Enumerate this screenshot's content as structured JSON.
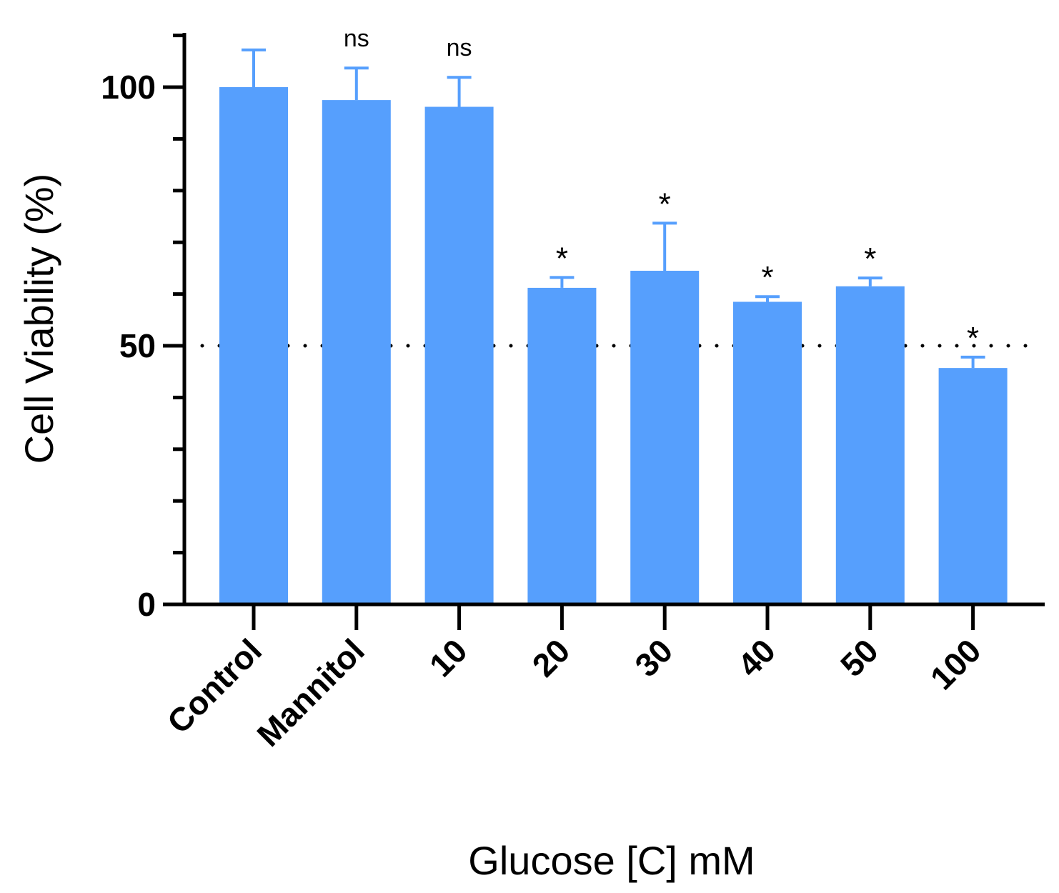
{
  "chart_data": {
    "type": "bar",
    "categories": [
      "Control",
      "Mannitol",
      "10",
      "20",
      "30",
      "40",
      "50",
      "100"
    ],
    "values": [
      100,
      97.5,
      96.2,
      61.2,
      64.5,
      58.5,
      61.5,
      45.7
    ],
    "errors": [
      7.2,
      6.2,
      5.7,
      2.0,
      9.2,
      1.0,
      1.6,
      2.1
    ],
    "significance": [
      "",
      "ns",
      "ns",
      "*",
      "*",
      "*",
      "*",
      "*"
    ],
    "reference_line": 50,
    "ylim": [
      0,
      110
    ],
    "yticks": [
      0,
      50,
      100
    ],
    "ylabel": "Cell Viability (%)",
    "xlabel": "Glucose [C] mM",
    "bar_color": "#569ffd",
    "axis_color": "#000000"
  }
}
